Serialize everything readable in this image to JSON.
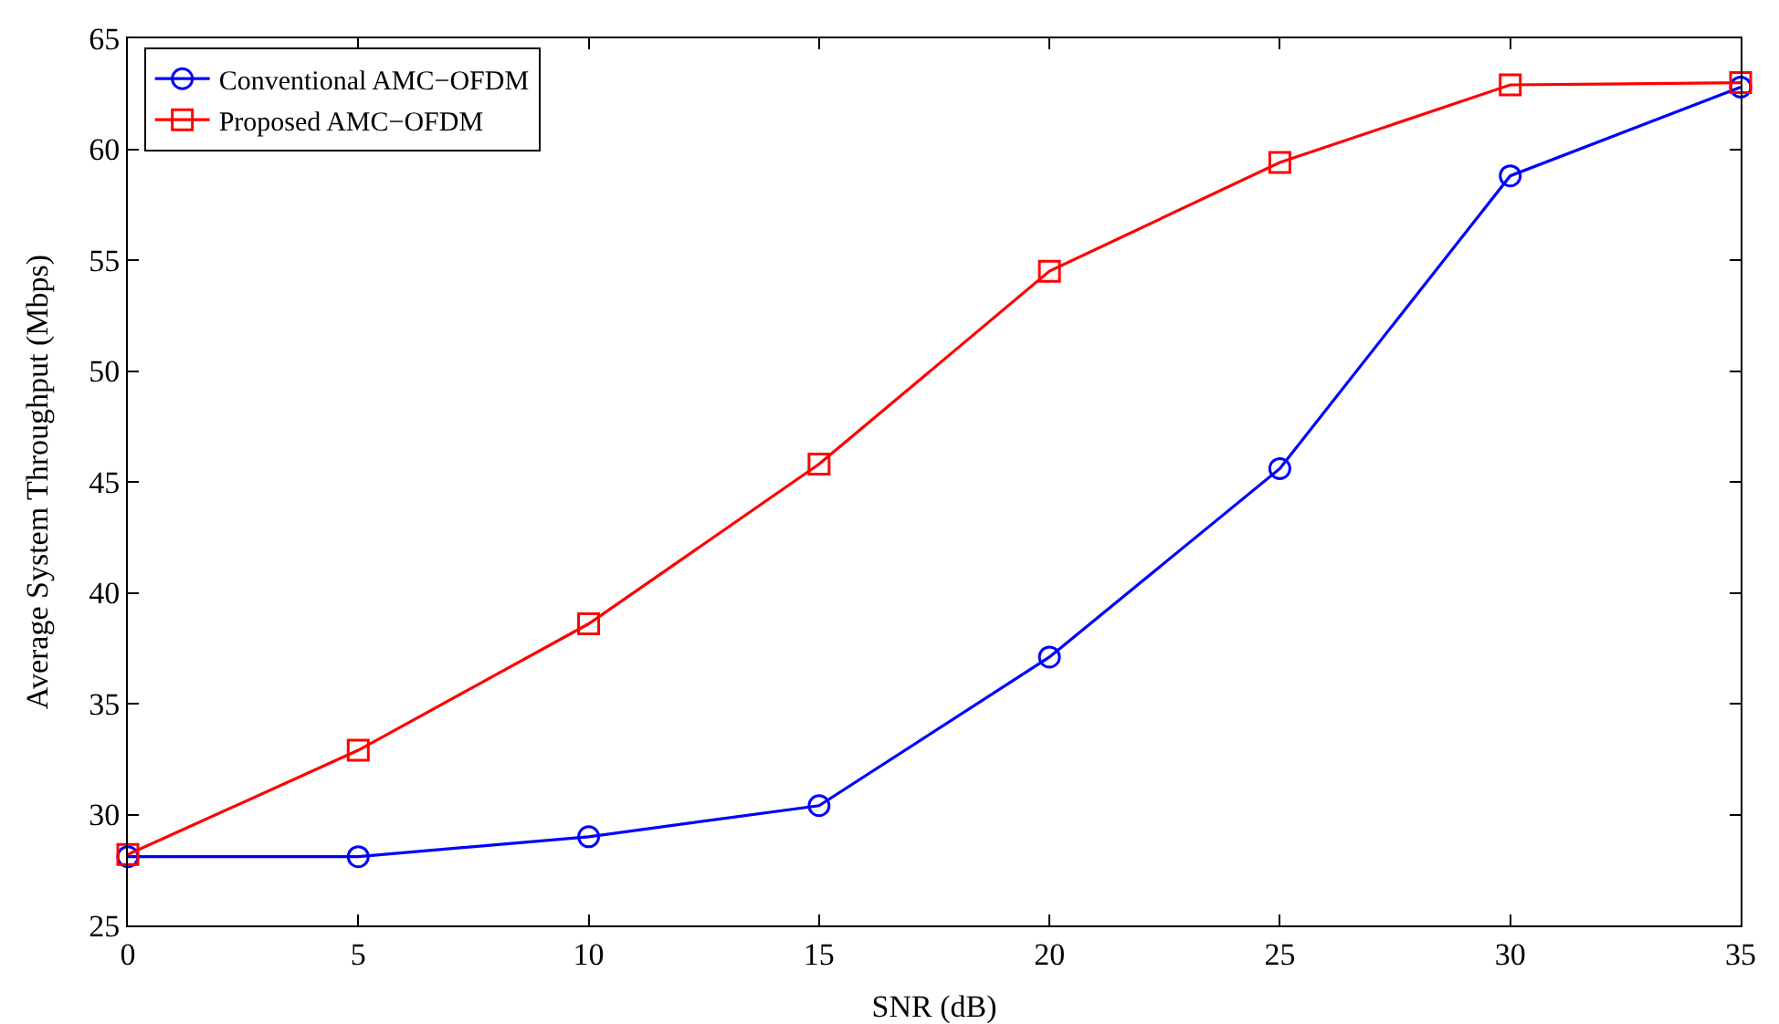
{
  "chart_data": {
    "type": "line",
    "xlabel": "SNR (dB)",
    "ylabel": "Average System Throughput (Mbps)",
    "x": [
      0,
      5,
      10,
      15,
      20,
      25,
      30,
      35
    ],
    "series": [
      {
        "name": "Conventional AMC−OFDM",
        "color": "#0000ff",
        "marker": "circle",
        "values": [
          28.1,
          28.1,
          29.0,
          30.4,
          37.1,
          45.6,
          58.8,
          62.8
        ]
      },
      {
        "name": "Proposed AMC−OFDM",
        "color": "#ff0000",
        "marker": "square",
        "values": [
          28.2,
          32.9,
          38.6,
          45.8,
          54.5,
          59.4,
          62.9,
          63.0
        ]
      }
    ],
    "xlim": [
      0,
      35
    ],
    "xticks": [
      0,
      5,
      10,
      15,
      20,
      25,
      30,
      35
    ],
    "ylim": [
      25,
      65
    ],
    "yticks": [
      25,
      30,
      35,
      40,
      45,
      50,
      55,
      60,
      65
    ],
    "grid": false,
    "legend": "top left",
    "line_style": "solid"
  }
}
